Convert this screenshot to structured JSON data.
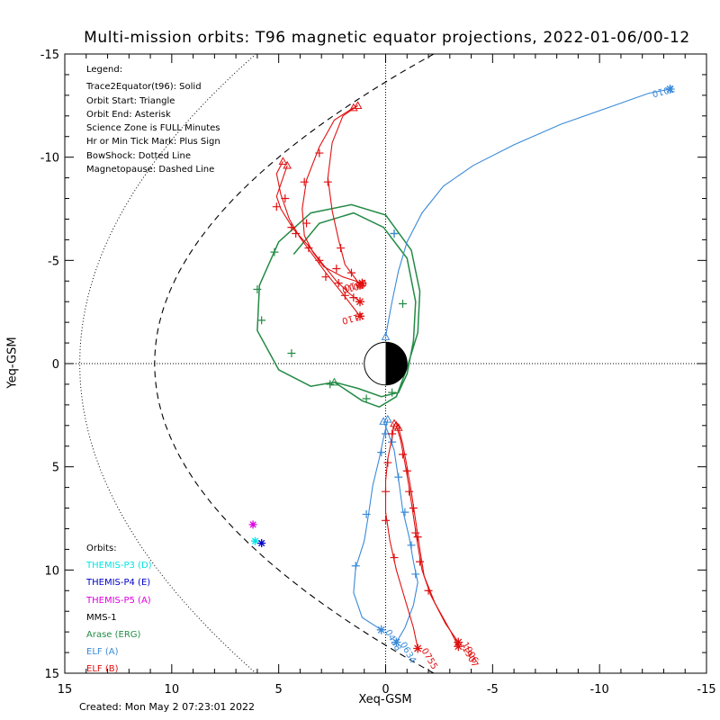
{
  "title": "Multi-mission orbits: T96 magnetic equator projections, 2022-01-06/00-12",
  "xlabel": "Xeq-GSM",
  "ylabel": "Yeq-GSM",
  "created": "Created: Mon May  2 07:23:01 2022",
  "legend": {
    "heading": "Legend:",
    "lines": [
      "Trace2Equator(t96): Solid",
      "Orbit Start: Triangle",
      "Orbit End: Asterisk",
      "Science Zone is FULL Minutes",
      "Hr or Min Tick Mark: Plus Sign",
      "BowShock: Dotted Line",
      "Magnetopause: Dashed Line"
    ]
  },
  "orbits": {
    "heading": "Orbits:",
    "items": [
      {
        "label": "THEMIS-P3 (D)",
        "color": "#00e5e5"
      },
      {
        "label": "THEMIS-P4 (E)",
        "color": "#0000c8"
      },
      {
        "label": "THEMIS-P5 (A)",
        "color": "#e000e0"
      },
      {
        "label": "MMS-1",
        "color": "#000000"
      },
      {
        "label": "Arase (ERG)",
        "color": "#238b45"
      },
      {
        "label": "ELF (A)",
        "color": "#3a8ad8"
      },
      {
        "label": "ELF (B)",
        "color": "#e01010"
      }
    ]
  },
  "chart_data": {
    "type": "line",
    "title": "Multi-mission orbits: T96 magnetic equator projections, 2022-01-06/00-12",
    "xlabel": "Xeq-GSM",
    "ylabel": "Yeq-GSM",
    "xlim": [
      15,
      -15
    ],
    "ylim": [
      -15,
      15
    ],
    "xticks": [
      "15",
      "10",
      "5",
      "0",
      "-5",
      "-10",
      "-15"
    ],
    "yticks": [
      "-15",
      "-10",
      "-5",
      "0",
      "5",
      "10",
      "15"
    ],
    "reference_lines": [
      "x=0 dotted",
      "y=0 dotted"
    ],
    "markers": [
      {
        "orbit": "THEMIS-P5 (A)",
        "x": 6.2,
        "y": 7.8
      },
      {
        "orbit": "THEMIS-P3 (D)",
        "x": 6.1,
        "y": 8.6
      },
      {
        "orbit": "THEMIS-P4 (E)",
        "x": 5.8,
        "y": 8.7
      }
    ],
    "series": [
      {
        "orbit": "Arase (ERG)",
        "color": "#238b45",
        "label": "",
        "points": [
          [
            2.4,
            0.9
          ],
          [
            1.1,
            1.8
          ],
          [
            0.3,
            2.1
          ],
          [
            -0.5,
            1.6
          ],
          [
            -1,
            0.2
          ],
          [
            -1.5,
            -1.5
          ],
          [
            -1.6,
            -3.5
          ],
          [
            -1.2,
            -5.5
          ],
          [
            0,
            -7.2
          ],
          [
            1.6,
            -7.7
          ],
          [
            3.5,
            -7.3
          ],
          [
            5,
            -5.9
          ],
          [
            5.9,
            -3.8
          ],
          [
            6,
            -1.6
          ],
          [
            5,
            0.3
          ],
          [
            3.5,
            1.1
          ],
          [
            2.4,
            0.9
          ],
          [
            1.3,
            1.2
          ],
          [
            0.2,
            1.6
          ],
          [
            -0.6,
            1.4
          ],
          [
            -1,
            0.5
          ],
          [
            -1.3,
            -1.1
          ],
          [
            -1.4,
            -3
          ],
          [
            -1,
            -5.1
          ],
          [
            0.1,
            -6.6
          ],
          [
            1.5,
            -7.3
          ],
          [
            3.1,
            -6.8
          ],
          [
            4.3,
            -5.3
          ]
        ],
        "ticks": [
          [
            6,
            -3.6
          ],
          [
            5.2,
            -5.4
          ],
          [
            5.8,
            -2.1
          ],
          [
            4.4,
            -0.5
          ],
          [
            2.6,
            1
          ],
          [
            0.9,
            1.7
          ],
          [
            -0.3,
            1.4
          ],
          [
            -0.8,
            -2.9
          ],
          [
            -0.4,
            -6.3
          ]
        ]
      },
      {
        "orbit": "ELF (A)",
        "color": "#3a8ad8",
        "label": "2010",
        "end": [
          -13.3,
          -13.3
        ],
        "points": [
          [
            0,
            -1.3
          ],
          [
            -0.1,
            -1.9
          ],
          [
            -0.3,
            -3
          ],
          [
            -0.6,
            -4.5
          ],
          [
            -1,
            -5.9
          ],
          [
            -1.7,
            -7.3
          ],
          [
            -2.7,
            -8.6
          ],
          [
            -4.1,
            -9.6
          ],
          [
            -6,
            -10.6
          ],
          [
            -8.2,
            -11.6
          ],
          [
            -10.4,
            -12.4
          ],
          [
            -12.3,
            -13.1
          ],
          [
            -13.3,
            -13.3
          ]
        ],
        "ticks": [
          [
            -0.4,
            -6.3
          ]
        ]
      },
      {
        "orbit": "ELF (A)",
        "color": "#3a8ad8",
        "label": "0458",
        "end": [
          0.2,
          12.9
        ],
        "points": [
          [
            -0.1,
            2.7
          ],
          [
            0.1,
            3.6
          ],
          [
            0.3,
            4.6
          ],
          [
            0.6,
            5.9
          ],
          [
            0.8,
            7.3
          ],
          [
            1,
            8.6
          ],
          [
            1.4,
            9.9
          ],
          [
            1.5,
            11.1
          ],
          [
            1.1,
            12.3
          ],
          [
            0.2,
            12.9
          ]
        ],
        "ticks": [
          [
            0,
            3.4
          ],
          [
            0.2,
            4.3
          ],
          [
            0.9,
            7.3
          ],
          [
            1.4,
            9.8
          ]
        ]
      },
      {
        "orbit": "ELF (A)",
        "color": "#3a8ad8",
        "label": "0634",
        "end": [
          -0.5,
          13.5
        ],
        "points": [
          [
            0.1,
            2.8
          ],
          [
            -0.1,
            3.3
          ],
          [
            -0.4,
            4.2
          ],
          [
            -0.6,
            5.6
          ],
          [
            -0.8,
            7.1
          ],
          [
            -1.1,
            8.4
          ],
          [
            -1.3,
            9.6
          ],
          [
            -1.5,
            10.6
          ],
          [
            -1.3,
            11.7
          ],
          [
            -0.9,
            12.8
          ],
          [
            -0.5,
            13.5
          ]
        ],
        "ticks": [
          [
            -0.3,
            3.8
          ],
          [
            -0.6,
            5.5
          ],
          [
            -0.9,
            7.2
          ],
          [
            -1.2,
            8.8
          ],
          [
            -1.4,
            10.2
          ]
        ]
      },
      {
        "orbit": "ELF (B)",
        "color": "#e01010",
        "label": "0755",
        "end": [
          -1.5,
          13.8
        ],
        "points": [
          [
            -0.4,
            2.9
          ],
          [
            -0.3,
            3.6
          ],
          [
            -0.1,
            4.6
          ],
          [
            0,
            5.7
          ],
          [
            0,
            7.2
          ],
          [
            -0.2,
            8.6
          ],
          [
            -0.5,
            10
          ],
          [
            -0.9,
            11.4
          ],
          [
            -1.3,
            12.8
          ],
          [
            -1.5,
            13.8
          ]
        ],
        "ticks": [
          [
            -0.3,
            3.4
          ],
          [
            -0.1,
            4.8
          ],
          [
            0,
            6.2
          ],
          [
            0,
            7.6
          ],
          [
            -0.4,
            9.4
          ]
        ]
      },
      {
        "orbit": "ELF (B)",
        "color": "#e01010",
        "label": "1906",
        "end": [
          -3.4,
          13.5
        ],
        "points": [
          [
            -0.5,
            3
          ],
          [
            -0.7,
            3.7
          ],
          [
            -0.9,
            4.8
          ],
          [
            -1.1,
            6
          ],
          [
            -1.3,
            7.4
          ],
          [
            -1.5,
            8.8
          ],
          [
            -1.7,
            10
          ],
          [
            -2.1,
            11.2
          ],
          [
            -2.8,
            12.6
          ],
          [
            -3.4,
            13.5
          ]
        ],
        "ticks": [
          [
            -0.8,
            4.4
          ],
          [
            -1.1,
            6.2
          ],
          [
            -1.4,
            8.2
          ],
          [
            -1.6,
            9.6
          ],
          [
            -2,
            11
          ]
        ]
      },
      {
        "orbit": "ELF (B)",
        "color": "#e01010",
        "label": "1907",
        "end": [
          -3.4,
          13.7
        ],
        "points": [
          [
            -0.6,
            3.1
          ],
          [
            -0.8,
            3.9
          ],
          [
            -1,
            5
          ],
          [
            -1.2,
            6.2
          ],
          [
            -1.4,
            7.6
          ],
          [
            -1.6,
            9
          ],
          [
            -1.8,
            10.3
          ],
          [
            -2.3,
            11.6
          ],
          [
            -3,
            12.9
          ],
          [
            -3.4,
            13.7
          ]
        ],
        "ticks": [
          [
            -1,
            5.2
          ],
          [
            -1.3,
            7
          ],
          [
            -1.5,
            8.4
          ]
        ]
      },
      {
        "orbit": "ELF (B)",
        "color": "#e01010",
        "label": "0010",
        "end": [
          1.1,
          -3.9
        ],
        "points": [
          [
            1.5,
            -12.4
          ],
          [
            2.4,
            -11.8
          ],
          [
            3.1,
            -10.5
          ],
          [
            3.7,
            -8.9
          ],
          [
            3.9,
            -7.5
          ],
          [
            3.8,
            -6.2
          ],
          [
            3.4,
            -5.4
          ],
          [
            2.9,
            -4.7
          ],
          [
            2,
            -4.2
          ],
          [
            1.1,
            -3.9
          ]
        ],
        "ticks": [
          [
            3.1,
            -10.2
          ],
          [
            3.8,
            -8.8
          ],
          [
            3.7,
            -6.8
          ],
          [
            2.3,
            -4.6
          ]
        ]
      },
      {
        "orbit": "ELF (B)",
        "color": "#e01010",
        "label": "0010",
        "end": [
          1.2,
          -3.8
        ],
        "points": [
          [
            1.3,
            -12.5
          ],
          [
            2,
            -12
          ],
          [
            2.5,
            -10.7
          ],
          [
            2.7,
            -9
          ],
          [
            2.5,
            -7.4
          ],
          [
            2.2,
            -6
          ],
          [
            1.9,
            -4.8
          ],
          [
            1.4,
            -4.1
          ],
          [
            1.2,
            -3.8
          ]
        ],
        "ticks": [
          [
            2.7,
            -8.8
          ],
          [
            2.1,
            -5.6
          ],
          [
            1.6,
            -4.4
          ]
        ]
      },
      {
        "orbit": "ELF (B)",
        "color": "#e01010",
        "label": "1110",
        "end": [
          1.2,
          -2.3
        ],
        "points": [
          [
            4.8,
            -9.8
          ],
          [
            5.1,
            -9.2
          ],
          [
            4.9,
            -8.2
          ],
          [
            4.5,
            -7
          ],
          [
            4,
            -6.1
          ],
          [
            3.5,
            -5.4
          ],
          [
            2.8,
            -4.4
          ],
          [
            2.1,
            -3.5
          ],
          [
            1.5,
            -2.7
          ],
          [
            1.2,
            -2.3
          ]
        ],
        "ticks": [
          [
            4.7,
            -8
          ],
          [
            4.4,
            -6.6
          ],
          [
            3.6,
            -5.6
          ],
          [
            2.8,
            -4.2
          ],
          [
            1.9,
            -3.3
          ]
        ]
      },
      {
        "orbit": "ELF (B)",
        "color": "#e01010",
        "label": "",
        "end": [
          1.2,
          -3
        ],
        "points": [
          [
            4.6,
            -9.6
          ],
          [
            5.1,
            -8.1
          ],
          [
            4.9,
            -7.5
          ],
          [
            4.3,
            -6.5
          ],
          [
            3.6,
            -5.7
          ],
          [
            3,
            -4.9
          ],
          [
            2.3,
            -4
          ],
          [
            1.7,
            -3.4
          ],
          [
            1.2,
            -3
          ]
        ],
        "ticks": [
          [
            5.1,
            -7.6
          ],
          [
            4.2,
            -6.3
          ],
          [
            3.1,
            -5
          ],
          [
            2.2,
            -3.9
          ],
          [
            1.5,
            -3.2
          ]
        ]
      }
    ]
  }
}
